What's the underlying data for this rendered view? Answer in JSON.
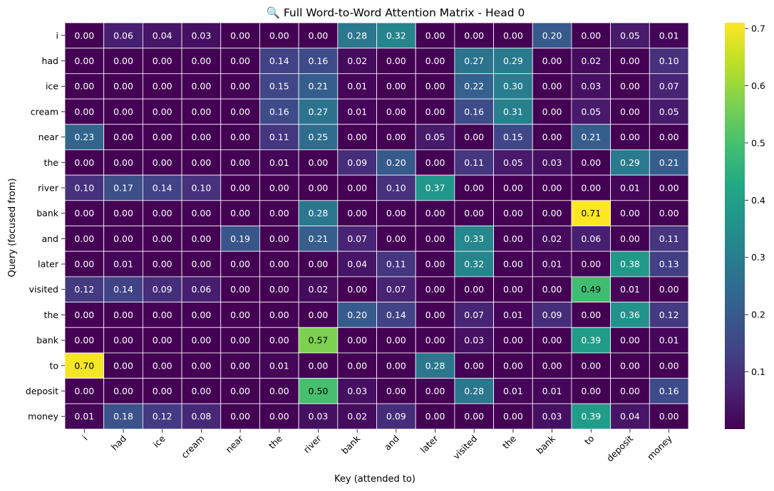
{
  "chart_data": {
    "type": "heatmap",
    "title": "🔍 Full Word-to-Word Attention Matrix - Head 0",
    "xlabel": "Key (attended to)",
    "ylabel": "Query (focused from)",
    "x_categories": [
      "i",
      "had",
      "ice",
      "cream",
      "near",
      "the",
      "river",
      "bank",
      "and",
      "later",
      "visited",
      "the",
      "bank",
      "to",
      "deposit",
      "money"
    ],
    "y_categories": [
      "i",
      "had",
      "ice",
      "cream",
      "near",
      "the",
      "river",
      "bank",
      "and",
      "later",
      "visited",
      "the",
      "bank",
      "to",
      "deposit",
      "money"
    ],
    "values": [
      [
        0.0,
        0.06,
        0.04,
        0.03,
        0.0,
        0.0,
        0.0,
        0.28,
        0.32,
        0.0,
        0.0,
        0.0,
        0.2,
        0.0,
        0.05,
        0.01
      ],
      [
        0.0,
        0.0,
        0.0,
        0.0,
        0.0,
        0.14,
        0.16,
        0.02,
        0.0,
        0.0,
        0.27,
        0.29,
        0.0,
        0.02,
        0.0,
        0.1
      ],
      [
        0.0,
        0.0,
        0.0,
        0.0,
        0.0,
        0.15,
        0.21,
        0.01,
        0.0,
        0.0,
        0.22,
        0.3,
        0.0,
        0.03,
        0.0,
        0.07
      ],
      [
        0.0,
        0.0,
        0.0,
        0.0,
        0.0,
        0.16,
        0.27,
        0.01,
        0.0,
        0.0,
        0.16,
        0.31,
        0.0,
        0.05,
        0.0,
        0.05
      ],
      [
        0.23,
        0.0,
        0.0,
        0.0,
        0.0,
        0.11,
        0.25,
        0.0,
        0.0,
        0.05,
        0.0,
        0.15,
        0.0,
        0.21,
        0.0,
        0.0
      ],
      [
        0.0,
        0.0,
        0.0,
        0.0,
        0.0,
        0.01,
        0.0,
        0.09,
        0.2,
        0.0,
        0.11,
        0.05,
        0.03,
        0.0,
        0.29,
        0.21
      ],
      [
        0.1,
        0.17,
        0.14,
        0.1,
        0.0,
        0.0,
        0.0,
        0.0,
        0.1,
        0.37,
        0.0,
        0.0,
        0.0,
        0.0,
        0.01,
        0.0
      ],
      [
        0.0,
        0.0,
        0.0,
        0.0,
        0.0,
        0.0,
        0.28,
        0.0,
        0.0,
        0.0,
        0.0,
        0.0,
        0.0,
        0.71,
        0.0,
        0.0
      ],
      [
        0.0,
        0.0,
        0.0,
        0.0,
        0.19,
        0.0,
        0.21,
        0.07,
        0.0,
        0.0,
        0.33,
        0.0,
        0.02,
        0.06,
        0.0,
        0.11
      ],
      [
        0.0,
        0.01,
        0.0,
        0.0,
        0.0,
        0.0,
        0.0,
        0.04,
        0.11,
        0.0,
        0.32,
        0.0,
        0.01,
        0.0,
        0.38,
        0.13
      ],
      [
        0.12,
        0.14,
        0.09,
        0.06,
        0.0,
        0.0,
        0.02,
        0.0,
        0.07,
        0.0,
        0.0,
        0.0,
        0.0,
        0.49,
        0.01,
        0.0
      ],
      [
        0.0,
        0.0,
        0.0,
        0.0,
        0.0,
        0.0,
        0.0,
        0.2,
        0.14,
        0.0,
        0.07,
        0.01,
        0.09,
        0.0,
        0.36,
        0.12
      ],
      [
        0.0,
        0.0,
        0.0,
        0.0,
        0.0,
        0.0,
        0.57,
        0.0,
        0.0,
        0.0,
        0.03,
        0.0,
        0.0,
        0.39,
        0.0,
        0.01
      ],
      [
        0.7,
        0.0,
        0.0,
        0.0,
        0.0,
        0.01,
        0.0,
        0.0,
        0.0,
        0.28,
        0.0,
        0.0,
        0.0,
        0.0,
        0.0,
        0.0
      ],
      [
        0.0,
        0.0,
        0.0,
        0.0,
        0.0,
        0.0,
        0.5,
        0.03,
        0.0,
        0.0,
        0.28,
        0.01,
        0.01,
        0.0,
        0.0,
        0.16
      ],
      [
        0.01,
        0.18,
        0.12,
        0.08,
        0.0,
        0.0,
        0.03,
        0.02,
        0.09,
        0.0,
        0.0,
        0.0,
        0.03,
        0.39,
        0.04,
        0.0
      ]
    ],
    "value_format": "2 decimals",
    "colormap": "viridis",
    "vmin": 0.0,
    "vmax": 0.71,
    "colorbar_ticks": [
      "0.1",
      "0.2",
      "0.3",
      "0.4",
      "0.5",
      "0.6",
      "0.7"
    ],
    "colorbar_tick_values": [
      0.1,
      0.2,
      0.3,
      0.4,
      0.5,
      0.6,
      0.7
    ],
    "grid": "white lines between cells",
    "legend": "colorbar right"
  }
}
